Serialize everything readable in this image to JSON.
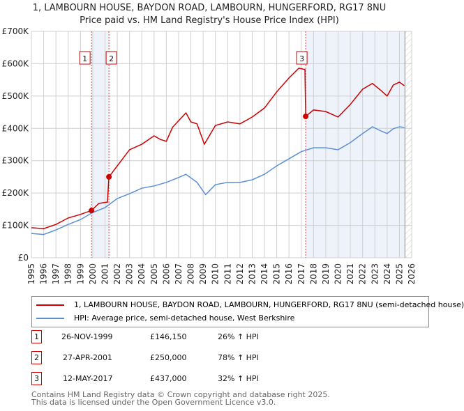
{
  "chart_data": {
    "type": "line",
    "title": "1, LAMBOURN HOUSE, BAYDON ROAD, LAMBOURN, HUNGERFORD, RG17 8NU",
    "subtitle": "Price paid vs. HM Land Registry's House Price Index (HPI)",
    "xlim": [
      1995,
      2026
    ],
    "ylim": [
      0,
      700000
    ],
    "x_ticks": [
      "1995",
      "1996",
      "1997",
      "1998",
      "1999",
      "2000",
      "2001",
      "2002",
      "2003",
      "2004",
      "2005",
      "2006",
      "2007",
      "2008",
      "2009",
      "2010",
      "2011",
      "2012",
      "2013",
      "2014",
      "2015",
      "2016",
      "2017",
      "2018",
      "2019",
      "2020",
      "2021",
      "2022",
      "2023",
      "2024",
      "2025",
      "2026"
    ],
    "y_ticks": [
      {
        "v": 0,
        "label": "£0"
      },
      {
        "v": 100000,
        "label": "£100K"
      },
      {
        "v": 200000,
        "label": "£200K"
      },
      {
        "v": 300000,
        "label": "£300K"
      },
      {
        "v": 400000,
        "label": "£400K"
      },
      {
        "v": 500000,
        "label": "£500K"
      },
      {
        "v": 600000,
        "label": "£600K"
      },
      {
        "v": 700000,
        "label": "£700K"
      }
    ],
    "grid": true,
    "series": [
      {
        "name": "1, LAMBOURN HOUSE, BAYDON ROAD, LAMBOURN, HUNGERFORD, RG17 8NU (semi-detached house)",
        "color": "#cc0000",
        "x": [
          1995,
          1996,
          1997,
          1998,
          1999,
          1999.9,
          2000.5,
          2001.2,
          2001.32,
          2002,
          2003,
          2004,
          2005,
          2005.5,
          2006,
          2006.5,
          2007.6,
          2008,
          2008.5,
          2009.1,
          2010,
          2011,
          2012,
          2013,
          2014,
          2015,
          2016,
          2016.8,
          2017.3,
          2017.36,
          2018,
          2019,
          2020,
          2021,
          2022,
          2022.8,
          2023.5,
          2024,
          2024.5,
          2025,
          2025.4
        ],
        "y": [
          93000,
          90000,
          103000,
          123000,
          134000,
          146150,
          168000,
          172000,
          250000,
          284000,
          334000,
          351000,
          377000,
          366000,
          360000,
          403000,
          448000,
          420000,
          414000,
          351000,
          409000,
          420000,
          414000,
          435000,
          463000,
          513000,
          556000,
          586000,
          582000,
          437000,
          457000,
          452000,
          435000,
          474000,
          521000,
          539000,
          517000,
          500000,
          534000,
          543000,
          532000
        ]
      },
      {
        "name": "HPI: Average price, semi-detached house, West Berkshire",
        "color": "#5b8fd4",
        "x": [
          1995,
          1996,
          1997,
          1998,
          1999,
          2000,
          2001,
          2002,
          2003,
          2004,
          2005,
          2006,
          2007,
          2007.6,
          2008.5,
          2009.2,
          2010,
          2011,
          2012,
          2013,
          2014,
          2015,
          2016,
          2017,
          2018,
          2019,
          2020,
          2021,
          2022,
          2022.8,
          2023.5,
          2024,
          2024.5,
          2025,
          2025.4
        ],
        "y": [
          75000,
          72000,
          86000,
          103000,
          118000,
          140000,
          155000,
          183000,
          198000,
          215000,
          222000,
          233000,
          248000,
          258000,
          233000,
          195000,
          226000,
          233000,
          233000,
          241000,
          258000,
          284000,
          306000,
          328000,
          340000,
          340000,
          334000,
          356000,
          384000,
          405000,
          392000,
          384000,
          399000,
          405000,
          403000
        ]
      }
    ],
    "sales": [
      {
        "n": "1",
        "x": 1999.9,
        "date": "26-NOV-1999",
        "price": 146150,
        "price_label": "£146,150",
        "hpi": "26% ↑ HPI"
      },
      {
        "n": "2",
        "x": 2001.32,
        "date": "27-APR-2001",
        "price": 250000,
        "price_label": "£250,000",
        "hpi": "78% ↑ HPI"
      },
      {
        "n": "3",
        "x": 2017.36,
        "date": "12-MAY-2017",
        "price": 437000,
        "price_label": "£437,000",
        "hpi": "32% ↑ HPI"
      }
    ]
  },
  "footer": {
    "line1": "Contains HM Land Registry data © Crown copyright and database right 2025.",
    "line2": "This data is licensed under the Open Government Licence v3.0."
  }
}
